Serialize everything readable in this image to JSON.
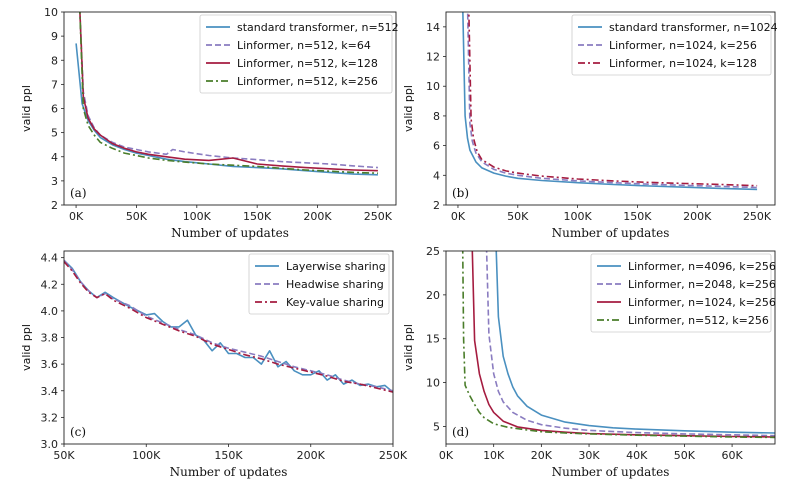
{
  "chart_data": [
    {
      "type": "line",
      "panel_label": "(a)",
      "xlabel": "Number of updates",
      "ylabel": "valid ppl",
      "xlim": [
        -10000,
        265000
      ],
      "ylim": [
        2,
        10
      ],
      "xticks": [
        0,
        50000,
        100000,
        150000,
        200000,
        250000
      ],
      "xtick_labels": [
        "0K",
        "50K",
        "100K",
        "150K",
        "200K",
        "250K"
      ],
      "yticks": [
        2,
        3,
        4,
        5,
        6,
        7,
        8,
        9,
        10
      ],
      "ytick_labels": [
        "2",
        "3",
        "4",
        "5",
        "6",
        "7",
        "8",
        "9",
        "10"
      ],
      "legend_position": "top-right",
      "series": [
        {
          "name": "standard transformer, n=512",
          "color": "#4a90c0",
          "dash": "solid",
          "x": [
            0,
            5000,
            10000,
            15000,
            20000,
            30000,
            40000,
            50000,
            60000,
            75000,
            90000,
            110000,
            130000,
            150000,
            170000,
            190000,
            210000,
            230000,
            250000
          ],
          "y": [
            8.7,
            6.2,
            5.5,
            5.1,
            4.8,
            4.5,
            4.3,
            4.15,
            4.05,
            3.9,
            3.8,
            3.7,
            3.6,
            3.55,
            3.5,
            3.42,
            3.35,
            3.28,
            3.25
          ]
        },
        {
          "name": "Linformer, n=512, k=64",
          "color": "#8a7cc0",
          "dash": "dashed",
          "x": [
            3000,
            6000,
            10000,
            15000,
            20000,
            30000,
            40000,
            50000,
            60000,
            75000,
            80000,
            90000,
            110000,
            130000,
            150000,
            170000,
            190000,
            210000,
            230000,
            250000
          ],
          "y": [
            10.2,
            6.7,
            5.7,
            5.2,
            4.9,
            4.6,
            4.4,
            4.3,
            4.2,
            4.1,
            4.3,
            4.2,
            4.05,
            3.95,
            3.88,
            3.8,
            3.75,
            3.7,
            3.62,
            3.55
          ]
        },
        {
          "name": "Linformer, n=512, k=128",
          "color": "#a51c40",
          "dash": "solid",
          "x": [
            3000,
            6000,
            10000,
            15000,
            20000,
            30000,
            40000,
            50000,
            60000,
            75000,
            90000,
            110000,
            130000,
            150000,
            170000,
            190000,
            210000,
            230000,
            250000
          ],
          "y": [
            10.2,
            6.5,
            5.6,
            5.15,
            4.9,
            4.55,
            4.35,
            4.2,
            4.1,
            4.0,
            3.9,
            3.85,
            3.95,
            3.7,
            3.62,
            3.55,
            3.5,
            3.45,
            3.42
          ]
        },
        {
          "name": "Linformer, n=512, k=256",
          "color": "#4a7d2a",
          "dash": "dashdot",
          "x": [
            3000,
            6000,
            10000,
            15000,
            20000,
            30000,
            40000,
            50000,
            60000,
            75000,
            90000,
            110000,
            130000,
            150000,
            170000,
            190000,
            210000,
            230000,
            250000
          ],
          "y": [
            10.2,
            6.0,
            5.3,
            4.9,
            4.6,
            4.35,
            4.15,
            4.05,
            3.95,
            3.85,
            3.78,
            3.7,
            3.65,
            3.6,
            3.52,
            3.45,
            3.4,
            3.35,
            3.32
          ]
        }
      ]
    },
    {
      "type": "line",
      "panel_label": "(b)",
      "xlabel": "Number of updates",
      "ylabel": "valid ppl",
      "xlim": [
        -10000,
        265000
      ],
      "ylim": [
        2,
        15
      ],
      "xticks": [
        0,
        50000,
        100000,
        150000,
        200000,
        250000
      ],
      "xtick_labels": [
        "0K",
        "50K",
        "100K",
        "150K",
        "200K",
        "250K"
      ],
      "yticks": [
        2,
        4,
        6,
        8,
        10,
        12,
        14
      ],
      "ytick_labels": [
        "2",
        "4",
        "6",
        "8",
        "10",
        "12",
        "14"
      ],
      "legend_position": "top-right",
      "series": [
        {
          "name": "standard transformer, n=1024",
          "color": "#4a90c0",
          "dash": "solid",
          "x": [
            4000,
            6000,
            8000,
            10000,
            15000,
            20000,
            30000,
            40000,
            50000,
            70000,
            100000,
            130000,
            160000,
            190000,
            220000,
            250000
          ],
          "y": [
            15.5,
            8.0,
            6.5,
            5.7,
            4.9,
            4.5,
            4.15,
            3.95,
            3.8,
            3.65,
            3.5,
            3.38,
            3.28,
            3.2,
            3.12,
            3.05
          ]
        },
        {
          "name": "Linformer, n=1024, k=256",
          "color": "#8a7cc0",
          "dash": "dashed",
          "x": [
            8000,
            10000,
            12000,
            15000,
            20000,
            30000,
            40000,
            50000,
            70000,
            100000,
            130000,
            160000,
            190000,
            220000,
            250000
          ],
          "y": [
            15.5,
            7.5,
            6.3,
            5.5,
            4.9,
            4.4,
            4.15,
            4.0,
            3.8,
            3.62,
            3.5,
            3.4,
            3.32,
            3.25,
            3.18
          ]
        },
        {
          "name": "Linformer, n=1024, k=128",
          "color": "#a51c40",
          "dash": "dashdot",
          "x": [
            9000,
            11000,
            13000,
            16000,
            20000,
            30000,
            40000,
            50000,
            70000,
            100000,
            130000,
            160000,
            190000,
            220000,
            250000
          ],
          "y": [
            15.5,
            7.8,
            6.5,
            5.6,
            5.05,
            4.55,
            4.3,
            4.15,
            3.95,
            3.75,
            3.62,
            3.52,
            3.45,
            3.38,
            3.3
          ]
        }
      ]
    },
    {
      "type": "line",
      "panel_label": "(c)",
      "xlabel": "Number of updates",
      "ylabel": "valid ppl",
      "xlim": [
        50000,
        250000
      ],
      "ylim": [
        3.0,
        4.45
      ],
      "xticks": [
        50000,
        100000,
        150000,
        200000,
        250000
      ],
      "xtick_labels": [
        "50K",
        "100K",
        "150K",
        "200K",
        "250K"
      ],
      "yticks": [
        3.0,
        3.2,
        3.4,
        3.6,
        3.8,
        4.0,
        4.2,
        4.4
      ],
      "ytick_labels": [
        "3.0",
        "3.2",
        "3.4",
        "3.6",
        "3.8",
        "4.0",
        "4.2",
        "4.4"
      ],
      "legend_position": "top-right",
      "series": [
        {
          "name": "Layerwise sharing",
          "color": "#4a90c0",
          "dash": "solid",
          "x": [
            50000,
            55000,
            60000,
            65000,
            70000,
            75000,
            80000,
            90000,
            100000,
            105000,
            110000,
            115000,
            120000,
            125000,
            130000,
            135000,
            140000,
            145000,
            150000,
            155000,
            160000,
            165000,
            170000,
            175000,
            180000,
            185000,
            190000,
            195000,
            200000,
            205000,
            210000,
            215000,
            220000,
            225000,
            230000,
            235000,
            240000,
            245000,
            250000
          ],
          "y": [
            4.38,
            4.32,
            4.22,
            4.15,
            4.1,
            4.14,
            4.1,
            4.03,
            3.97,
            3.98,
            3.92,
            3.88,
            3.88,
            3.93,
            3.82,
            3.78,
            3.7,
            3.76,
            3.68,
            3.68,
            3.65,
            3.65,
            3.6,
            3.7,
            3.58,
            3.62,
            3.55,
            3.52,
            3.52,
            3.55,
            3.48,
            3.52,
            3.45,
            3.48,
            3.44,
            3.45,
            3.43,
            3.44,
            3.39
          ]
        },
        {
          "name": "Headwise sharing",
          "color": "#8a7cc0",
          "dash": "dashed",
          "x": [
            50000,
            55000,
            60000,
            65000,
            70000,
            75000,
            80000,
            90000,
            100000,
            110000,
            120000,
            130000,
            140000,
            150000,
            160000,
            170000,
            180000,
            190000,
            200000,
            210000,
            220000,
            230000,
            240000,
            250000
          ],
          "y": [
            4.38,
            4.31,
            4.22,
            4.15,
            4.1,
            4.13,
            4.09,
            4.04,
            3.96,
            3.91,
            3.86,
            3.82,
            3.76,
            3.72,
            3.69,
            3.66,
            3.62,
            3.58,
            3.55,
            3.52,
            3.48,
            3.45,
            3.43,
            3.4
          ]
        },
        {
          "name": "Key-value sharing",
          "color": "#a51c40",
          "dash": "dashdot",
          "x": [
            50000,
            55000,
            60000,
            65000,
            70000,
            75000,
            80000,
            90000,
            100000,
            110000,
            120000,
            130000,
            140000,
            150000,
            160000,
            170000,
            180000,
            190000,
            200000,
            210000,
            220000,
            230000,
            240000,
            250000
          ],
          "y": [
            4.37,
            4.3,
            4.21,
            4.14,
            4.1,
            4.13,
            4.08,
            4.02,
            3.95,
            3.9,
            3.85,
            3.81,
            3.75,
            3.71,
            3.67,
            3.64,
            3.6,
            3.57,
            3.54,
            3.51,
            3.47,
            3.45,
            3.42,
            3.39
          ]
        }
      ]
    },
    {
      "type": "line",
      "panel_label": "(d)",
      "xlabel": "Number of updates",
      "ylabel": "valid ppl",
      "xlim": [
        0,
        69000
      ],
      "ylim": [
        3,
        25
      ],
      "xticks": [
        0,
        10000,
        20000,
        30000,
        40000,
        50000,
        60000
      ],
      "xtick_labels": [
        "0K",
        "10K",
        "20K",
        "30K",
        "40K",
        "50K",
        "60K"
      ],
      "yticks": [
        5,
        10,
        15,
        20,
        25
      ],
      "ytick_labels": [
        "5",
        "10",
        "15",
        "20",
        "25"
      ],
      "legend_position": "top-right",
      "series": [
        {
          "name": "Linformer, n=4096, k=256",
          "color": "#4a90c0",
          "dash": "solid",
          "x": [
            10500,
            11000,
            12000,
            13000,
            14000,
            15000,
            17000,
            20000,
            25000,
            30000,
            35000,
            40000,
            50000,
            60000,
            69000
          ],
          "y": [
            25.5,
            17.5,
            13.0,
            11.0,
            9.5,
            8.5,
            7.3,
            6.3,
            5.5,
            5.1,
            4.85,
            4.7,
            4.5,
            4.35,
            4.25
          ]
        },
        {
          "name": "Linformer, n=2048, k=256",
          "color": "#8a7cc0",
          "dash": "dashed",
          "x": [
            8500,
            9000,
            10000,
            11000,
            12000,
            14000,
            17000,
            20000,
            25000,
            30000,
            40000,
            50000,
            60000,
            69000
          ],
          "y": [
            25.5,
            15.5,
            11.0,
            9.0,
            7.8,
            6.6,
            5.7,
            5.2,
            4.8,
            4.55,
            4.3,
            4.15,
            4.05,
            3.95
          ]
        },
        {
          "name": "Linformer, n=1024, k=256",
          "color": "#a51c40",
          "dash": "solid",
          "x": [
            5500,
            6000,
            7000,
            8000,
            9000,
            10000,
            12000,
            15000,
            20000,
            25000,
            30000,
            40000,
            50000,
            60000,
            69000
          ],
          "y": [
            25.5,
            14.8,
            11.0,
            9.0,
            7.5,
            6.6,
            5.6,
            4.95,
            4.55,
            4.35,
            4.2,
            4.05,
            3.95,
            3.85,
            3.8
          ]
        },
        {
          "name": "Linformer, n=512, k=256",
          "color": "#4a7d2a",
          "dash": "dashdot",
          "x": [
            3500,
            3700,
            4000,
            5000,
            6000,
            7000,
            8000,
            10000,
            13000,
            17000,
            20000,
            25000,
            30000,
            40000,
            50000,
            60000,
            69000
          ],
          "y": [
            25.5,
            15.0,
            9.7,
            8.5,
            7.5,
            6.6,
            6.0,
            5.3,
            4.9,
            4.6,
            4.4,
            4.25,
            4.15,
            4.0,
            3.9,
            3.8,
            3.75
          ]
        }
      ]
    }
  ]
}
